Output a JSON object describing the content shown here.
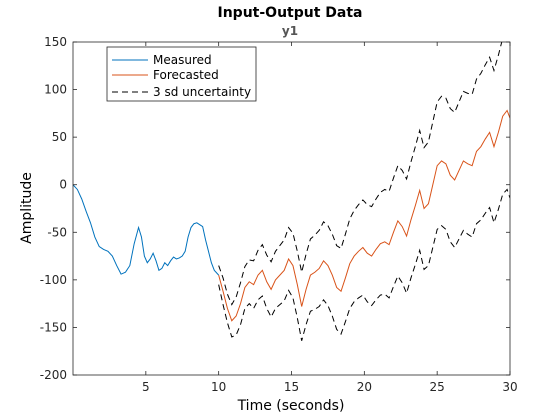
{
  "chart_data": {
    "type": "line",
    "title": "Input-Output Data",
    "subtitle": "y1",
    "xlabel": "Time (seconds)",
    "ylabel": "Amplitude",
    "xlim": [
      0,
      30
    ],
    "ylim": [
      -200,
      150
    ],
    "xticks": [
      5,
      10,
      15,
      20,
      25,
      30
    ],
    "yticks": [
      -200,
      -150,
      -100,
      -50,
      0,
      50,
      100,
      150
    ],
    "grid": false,
    "legend_position": "top-left",
    "series": [
      {
        "name": "Measured",
        "color": "#0072BD",
        "style": "solid",
        "x": [
          0,
          0.3,
          0.6,
          0.9,
          1.2,
          1.5,
          1.8,
          2.1,
          2.4,
          2.7,
          3.0,
          3.3,
          3.6,
          3.9,
          4.2,
          4.5,
          4.7,
          4.9,
          5.1,
          5.3,
          5.5,
          5.7,
          5.9,
          6.1,
          6.3,
          6.5,
          6.7,
          6.9,
          7.1,
          7.3,
          7.5,
          7.7,
          7.9,
          8.1,
          8.3,
          8.5,
          8.7,
          8.9,
          9.1,
          9.3,
          9.5,
          9.7,
          10.0
        ],
        "y": [
          0,
          -5,
          -15,
          -28,
          -40,
          -55,
          -65,
          -68,
          -70,
          -75,
          -85,
          -94,
          -92,
          -85,
          -62,
          -45,
          -55,
          -75,
          -82,
          -78,
          -72,
          -80,
          -90,
          -88,
          -82,
          -85,
          -80,
          -76,
          -78,
          -77,
          -75,
          -70,
          -55,
          -45,
          -41,
          -40,
          -42,
          -44,
          -58,
          -70,
          -82,
          -90,
          -95
        ]
      },
      {
        "name": "Forecasted",
        "color": "#D95319",
        "style": "solid",
        "x": [
          10.0,
          10.3,
          10.6,
          10.9,
          11.2,
          11.5,
          11.8,
          12.1,
          12.4,
          12.7,
          13.0,
          13.3,
          13.6,
          13.9,
          14.2,
          14.5,
          14.8,
          15.1,
          15.4,
          15.7,
          16.0,
          16.3,
          16.6,
          16.9,
          17.2,
          17.5,
          17.8,
          18.1,
          18.4,
          18.7,
          19.0,
          19.3,
          19.6,
          19.9,
          20.2,
          20.5,
          20.8,
          21.1,
          21.4,
          21.7,
          22.0,
          22.3,
          22.6,
          22.9,
          23.2,
          23.5,
          23.8,
          24.1,
          24.4,
          24.7,
          25.0,
          25.3,
          25.6,
          25.9,
          26.2,
          26.5,
          26.8,
          27.1,
          27.4,
          27.7,
          28.0,
          28.3,
          28.6,
          28.9,
          29.2,
          29.5,
          29.8,
          30.0
        ],
        "y": [
          -95,
          -112,
          -130,
          -143,
          -138,
          -125,
          -108,
          -102,
          -105,
          -95,
          -90,
          -102,
          -110,
          -100,
          -95,
          -90,
          -78,
          -85,
          -105,
          -128,
          -110,
          -95,
          -92,
          -88,
          -80,
          -85,
          -95,
          -108,
          -112,
          -98,
          -83,
          -75,
          -70,
          -66,
          -72,
          -75,
          -68,
          -62,
          -60,
          -63,
          -50,
          -38,
          -44,
          -54,
          -37,
          -22,
          -6,
          -25,
          -20,
          0,
          20,
          25,
          22,
          10,
          5,
          15,
          25,
          22,
          20,
          35,
          40,
          48,
          55,
          40,
          55,
          72,
          78,
          70
        ]
      },
      {
        "name": "3 sd uncertainty",
        "color": "#000000",
        "style": "dashed",
        "x": [
          10.0,
          10.3,
          10.6,
          10.9,
          11.2,
          11.5,
          11.8,
          12.1,
          12.4,
          12.7,
          13.0,
          13.3,
          13.6,
          13.9,
          14.2,
          14.5,
          14.8,
          15.1,
          15.4,
          15.7,
          16.0,
          16.3,
          16.6,
          16.9,
          17.2,
          17.5,
          17.8,
          18.1,
          18.4,
          18.7,
          19.0,
          19.3,
          19.6,
          19.9,
          20.2,
          20.5,
          20.8,
          21.1,
          21.4,
          21.7,
          22.0,
          22.3,
          22.6,
          22.9,
          23.2,
          23.5,
          23.8,
          24.1,
          24.4,
          24.7,
          25.0,
          25.3,
          25.6,
          25.9,
          26.2,
          26.5,
          26.8,
          27.1,
          27.4,
          27.7,
          28.0,
          28.3,
          28.6,
          28.9,
          29.2,
          29.5,
          29.8,
          30.0
        ],
        "y_upper": [
          -85,
          -98,
          -115,
          -126,
          -118,
          -103,
          -86,
          -79,
          -80,
          -69,
          -63,
          -74,
          -81,
          -70,
          -64,
          -58,
          -45,
          -51,
          -70,
          -92,
          -73,
          -57,
          -53,
          -48,
          -39,
          -43,
          -52,
          -64,
          -67,
          -52,
          -36,
          -27,
          -21,
          -16,
          -21,
          -23,
          -15,
          -8,
          -5,
          -7,
          7,
          20,
          15,
          6,
          24,
          40,
          57,
          39,
          45,
          66,
          87,
          93,
          91,
          80,
          76,
          87,
          98,
          96,
          95,
          111,
          117,
          126,
          134,
          120,
          136,
          154,
          161,
          154
        ],
        "y_lower": [
          -105,
          -126,
          -145,
          -160,
          -158,
          -147,
          -130,
          -125,
          -130,
          -121,
          -117,
          -130,
          -139,
          -130,
          -126,
          -122,
          -111,
          -119,
          -140,
          -164,
          -147,
          -133,
          -131,
          -128,
          -121,
          -127,
          -138,
          -152,
          -157,
          -144,
          -130,
          -123,
          -119,
          -116,
          -123,
          -127,
          -121,
          -116,
          -115,
          -119,
          -107,
          -96,
          -103,
          -114,
          -98,
          -84,
          -69,
          -89,
          -85,
          -66,
          -47,
          -43,
          -47,
          -60,
          -66,
          -57,
          -48,
          -52,
          -55,
          -41,
          -37,
          -30,
          -24,
          -40,
          -26,
          -10,
          -5,
          -14
        ]
      }
    ]
  }
}
